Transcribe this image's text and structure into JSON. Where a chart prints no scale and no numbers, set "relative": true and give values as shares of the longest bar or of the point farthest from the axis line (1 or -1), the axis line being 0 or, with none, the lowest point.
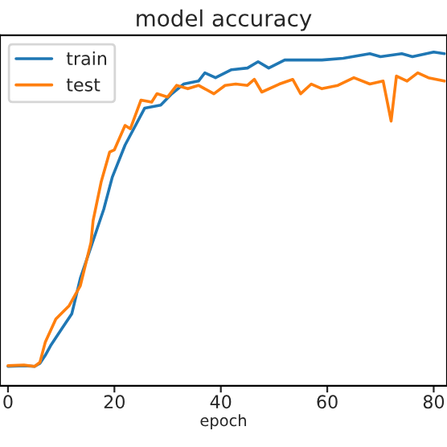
{
  "chart_data": {
    "type": "line",
    "title": "model accuracy",
    "xlabel": "epoch",
    "relative": true,
    "xlim": [
      -1.5,
      82.5
    ],
    "xticks": [
      0,
      20,
      40,
      60,
      80
    ],
    "tick_labels": "x",
    "grid": false,
    "legend": "top left",
    "marker": "none",
    "line_style": "solid",
    "series": [
      {
        "name": "train",
        "color": "#1f77b4",
        "x": [
          0,
          3,
          5,
          6,
          7,
          8,
          9,
          10,
          12,
          13.6,
          18,
          19.6,
          22,
          25.7,
          28.7,
          30.8,
          33,
          35.8,
          37,
          39,
          42,
          45,
          47,
          49,
          52,
          55,
          59,
          63,
          68,
          70,
          74,
          76,
          80,
          82
        ],
        "values": [
          0.058,
          0.06,
          0.058,
          0.067,
          0.091,
          0.12,
          0.144,
          0.168,
          0.216,
          0.322,
          0.529,
          0.625,
          0.721,
          0.832,
          0.841,
          0.875,
          0.904,
          0.913,
          0.9375,
          0.923,
          0.947,
          0.952,
          0.971,
          0.952,
          0.976,
          0.976,
          0.976,
          0.981,
          0.995,
          0.986,
          0.995,
          0.986,
          1.0,
          0.995
        ]
      },
      {
        "name": "test",
        "color": "#ff7f0e",
        "x": [
          0,
          3,
          5,
          6,
          7,
          9,
          11.5,
          13.6,
          15.6,
          16,
          17.5,
          19.1,
          20,
          22,
          23,
          25,
          27,
          28,
          30,
          31.7,
          33.8,
          35.8,
          38.7,
          40.8,
          42.8,
          45,
          46.3,
          47.7,
          51,
          53.5,
          55,
          57,
          59,
          62,
          65,
          68,
          70.5,
          72,
          73,
          75,
          77,
          79,
          82
        ],
        "values": [
          0.06,
          0.062,
          0.058,
          0.07,
          0.13,
          0.2,
          0.24,
          0.3,
          0.43,
          0.495,
          0.61,
          0.7,
          0.707,
          0.78,
          0.77,
          0.856,
          0.85,
          0.875,
          0.865,
          0.9,
          0.89,
          0.9,
          0.875,
          0.9,
          0.904,
          0.9,
          0.918,
          0.88,
          0.904,
          0.918,
          0.875,
          0.904,
          0.89,
          0.9,
          0.923,
          0.904,
          0.913,
          0.793,
          0.928,
          0.913,
          0.9375,
          0.923,
          0.913
        ]
      }
    ]
  }
}
